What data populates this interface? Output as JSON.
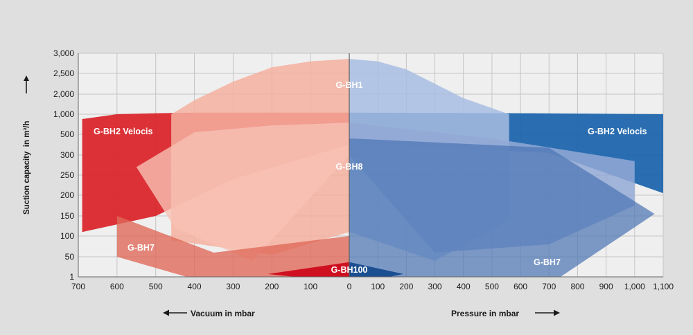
{
  "chart_data": {
    "type": "area",
    "title": "",
    "ylabel": "Suction capacity  in m³/h",
    "xlabel_left": "Vacuum in mbar",
    "xlabel_right": "Pressure in mbar",
    "y_ticks": [
      "1",
      "50",
      "100",
      "150",
      "200",
      "250",
      "300",
      "500",
      "1,000",
      "2,000",
      "2,500",
      "3,000"
    ],
    "x_ticks_vacuum": [
      "700",
      "600",
      "500",
      "400",
      "300",
      "200",
      "100",
      "0"
    ],
    "x_ticks_pressure": [
      "100",
      "200",
      "300",
      "400",
      "500",
      "600",
      "700",
      "800",
      "900",
      "1,000",
      "1,100"
    ],
    "grid": true,
    "colors": {
      "vacuum_red": "#d9262c",
      "pressure_blue": "#1f66ad",
      "vacuum_light": "#f4b0a0",
      "pressure_light": "#a8bde2"
    },
    "series": [
      {
        "name": "G-BH1",
        "vacuum": [
          [
            460,
            1000
          ],
          [
            400,
            1700
          ],
          [
            300,
            2300
          ],
          [
            200,
            2650
          ],
          [
            100,
            2800
          ],
          [
            0,
            2860
          ]
        ],
        "pressure": [
          [
            0,
            2860
          ],
          [
            100,
            2800
          ],
          [
            200,
            2600
          ],
          [
            300,
            2250
          ],
          [
            400,
            1800
          ],
          [
            500,
            1300
          ],
          [
            560,
            1000
          ]
        ]
      },
      {
        "name": "G-BH2 Velocis",
        "vacuum": [
          [
            690,
            880
          ],
          [
            600,
            1000
          ],
          [
            500,
            1050
          ],
          [
            400,
            1075
          ],
          [
            0,
            1080
          ]
        ],
        "pressure": [
          [
            0,
            1080
          ],
          [
            600,
            1050
          ],
          [
            1100,
            1000
          ],
          [
            1100,
            205
          ]
        ]
      },
      {
        "name": "G-BH8",
        "vacuum": [
          [
            550,
            270
          ],
          [
            400,
            550
          ],
          [
            200,
            720
          ],
          [
            0,
            790
          ]
        ],
        "pressure": [
          [
            0,
            790
          ],
          [
            500,
            460
          ],
          [
            1000,
            285
          ],
          [
            1000,
            175
          ]
        ]
      },
      {
        "name": "G-BH7",
        "vacuum": [
          [
            600,
            150
          ],
          [
            600,
            50
          ],
          [
            420,
            1
          ],
          [
            0,
            1
          ]
        ],
        "pressure": [
          [
            0,
            1
          ],
          [
            740,
            1
          ],
          [
            1070,
            155
          ],
          [
            700,
            370
          ],
          [
            0,
            460
          ]
        ]
      },
      {
        "name": "G-BH100",
        "vacuum": [
          [
            210,
            8
          ],
          [
            0,
            37
          ]
        ],
        "pressure": [
          [
            0,
            37
          ],
          [
            190,
            8
          ]
        ]
      }
    ]
  }
}
